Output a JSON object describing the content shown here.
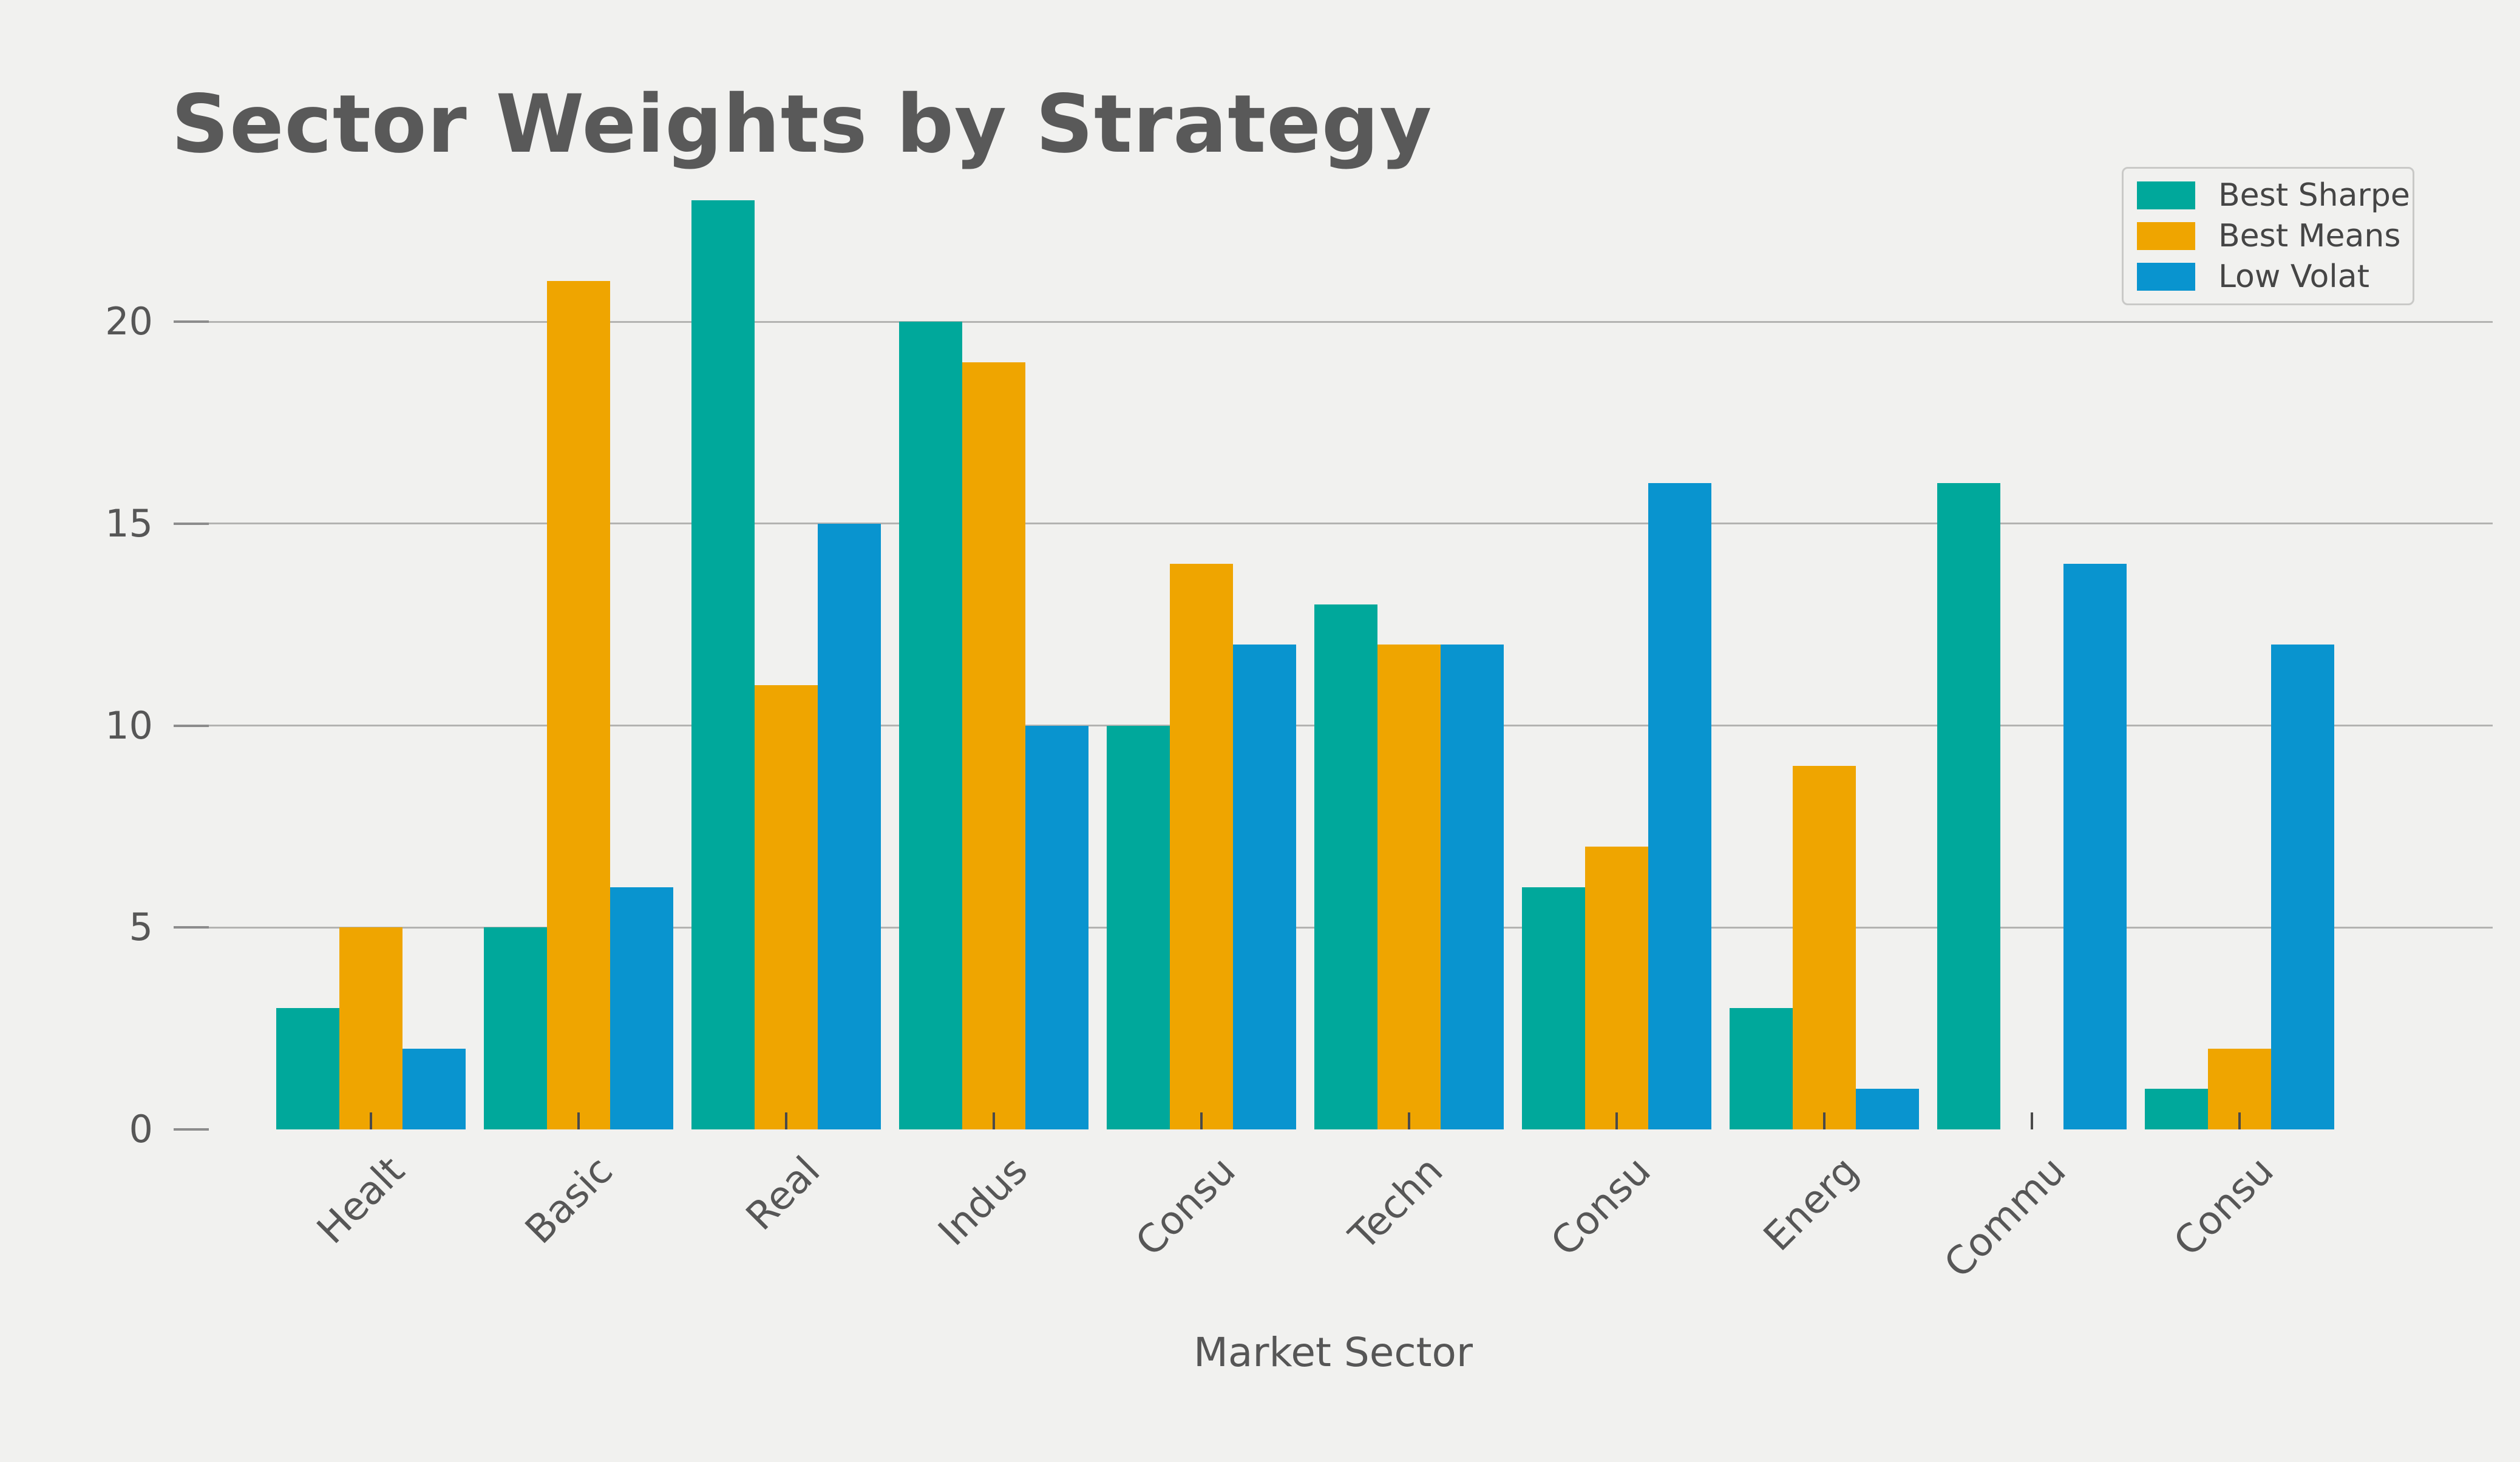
{
  "figure": {
    "background_color": "#F1F1EF",
    "gridline_color": "#B3B3B1",
    "tick_color": "#4A4A4A",
    "text_color": "#565656",
    "title_color": "#595959"
  },
  "chart_data": {
    "type": "bar",
    "title": "Sector Weights by Strategy",
    "xlabel": "Market Sector",
    "ylabel": "",
    "categories": [
      "Healt",
      "Basic",
      "Real",
      "Indus",
      "Consu",
      "Techn",
      "Consu",
      "Energ",
      "Commu",
      "Consu"
    ],
    "series": [
      {
        "name": "Best Sharpe",
        "color": "#00A89B",
        "values": [
          3,
          5,
          23,
          20,
          10,
          13,
          6,
          3,
          16,
          1
        ]
      },
      {
        "name": "Best Means",
        "color": "#EFA500",
        "values": [
          5,
          21,
          11,
          19,
          14,
          12,
          7,
          9,
          0,
          2
        ]
      },
      {
        "name": "Low Volat",
        "color": "#0994CF",
        "values": [
          2,
          6,
          15,
          10,
          12,
          12,
          16,
          1,
          14,
          12
        ]
      }
    ],
    "yticks": [
      0,
      5,
      10,
      15,
      20
    ],
    "ylim": [
      0,
      24.2
    ],
    "grid": true,
    "legend_position": "upper right"
  },
  "legend": {
    "entries": [
      "Best Sharpe",
      "Best Means",
      "Low Volat"
    ]
  }
}
